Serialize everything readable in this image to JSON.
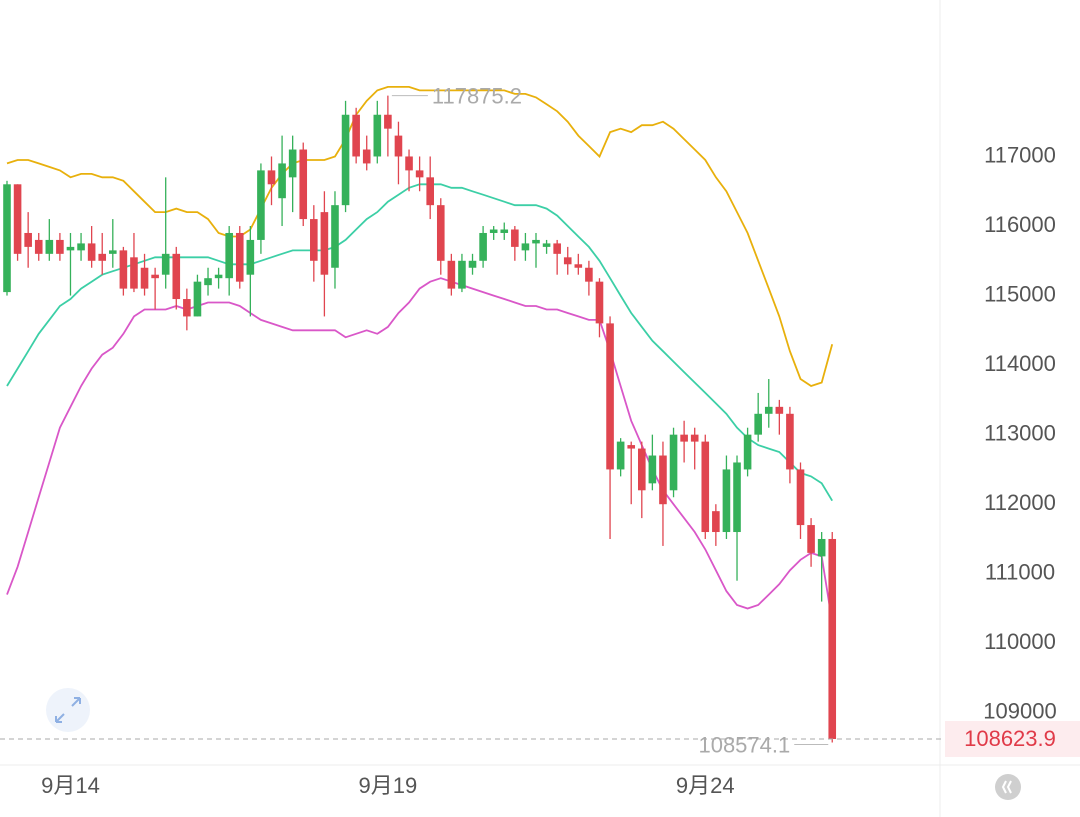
{
  "chart_data": {
    "type": "candlestick",
    "categories": [
      null,
      null,
      null,
      null,
      null,
      null,
      "9月14",
      null,
      null,
      null,
      null,
      null,
      null,
      null,
      null,
      null,
      null,
      null,
      null,
      null,
      null,
      null,
      null,
      null,
      null,
      null,
      null,
      null,
      null,
      null,
      null,
      null,
      null,
      null,
      null,
      null,
      "9月19",
      null,
      null,
      null,
      null,
      null,
      null,
      null,
      null,
      null,
      null,
      null,
      null,
      null,
      null,
      null,
      null,
      null,
      null,
      null,
      null,
      null,
      null,
      null,
      null,
      null,
      null,
      null,
      null,
      null,
      "9月24",
      null,
      null,
      null,
      null,
      null,
      null,
      null,
      null,
      null,
      null,
      null,
      null
    ],
    "open": [
      115050,
      116600,
      115900,
      115800,
      115600,
      115800,
      115650,
      115650,
      115750,
      115600,
      115600,
      115650,
      115550,
      115400,
      115300,
      115300,
      115600,
      114950,
      114700,
      115150,
      115250,
      115250,
      115900,
      115300,
      115800,
      116800,
      116400,
      116700,
      117100,
      116100,
      116200,
      115400,
      116300,
      117600,
      117100,
      117000,
      117600,
      117300,
      117000,
      116800,
      116700,
      116300,
      115500,
      115100,
      115400,
      115500,
      115900,
      115900,
      115950,
      115650,
      115750,
      115700,
      115750,
      115550,
      115450,
      115400,
      115200,
      114600,
      112500,
      112850,
      112800,
      112300,
      112700,
      112200,
      113000,
      113000,
      112900,
      111900,
      111600,
      111600,
      112500,
      113000,
      113300,
      113400,
      113300,
      112500,
      111700,
      111250,
      111500
    ],
    "high": [
      116650,
      116600,
      116200,
      115900,
      116100,
      115900,
      115900,
      115900,
      116000,
      115900,
      116100,
      115700,
      115900,
      115600,
      115400,
      116700,
      115700,
      115100,
      115300,
      115400,
      115400,
      116000,
      116000,
      116000,
      116900,
      117000,
      117300,
      117300,
      117200,
      116300,
      116500,
      116500,
      117800,
      117700,
      117300,
      117800,
      117875.2,
      117500,
      117100,
      117000,
      117000,
      116400,
      115600,
      115600,
      115600,
      116000,
      116000,
      116050,
      116000,
      115900,
      115900,
      115800,
      115800,
      115700,
      115600,
      115500,
      115250,
      114700,
      112950,
      112900,
      112900,
      113000,
      112900,
      113100,
      113200,
      113100,
      113000,
      112000,
      112700,
      112700,
      113100,
      113600,
      113800,
      113500,
      113400,
      112600,
      111800,
      111600,
      111600
    ],
    "low": [
      115000,
      115500,
      115400,
      115500,
      115500,
      115500,
      115000,
      115500,
      115400,
      115300,
      115400,
      115000,
      115050,
      115000,
      114800,
      115100,
      114800,
      114500,
      114700,
      115000,
      115100,
      115000,
      115100,
      114700,
      115600,
      116300,
      116000,
      116200,
      116000,
      115200,
      114700,
      115100,
      116200,
      116900,
      116800,
      116900,
      117000,
      116600,
      116500,
      116500,
      116100,
      115300,
      115000,
      115050,
      115300,
      115400,
      115800,
      115800,
      115500,
      115500,
      115400,
      115600,
      115300,
      115300,
      115300,
      115000,
      114400,
      111500,
      112400,
      112000,
      111800,
      112200,
      111400,
      112100,
      112600,
      112500,
      111500,
      111400,
      111500,
      110900,
      112400,
      112900,
      113100,
      113000,
      112300,
      111500,
      111100,
      110600,
      108574.1
    ],
    "close": [
      116600,
      115600,
      115700,
      115600,
      115800,
      115600,
      115700,
      115750,
      115500,
      115500,
      115650,
      115100,
      115100,
      115100,
      115250,
      115600,
      114950,
      114700,
      115200,
      115250,
      115300,
      115900,
      115200,
      115800,
      116800,
      116600,
      116900,
      117100,
      116100,
      115500,
      115300,
      116300,
      117600,
      117000,
      116900,
      117600,
      117400,
      117000,
      116800,
      116700,
      116300,
      115500,
      115100,
      115500,
      115500,
      115900,
      115950,
      115950,
      115700,
      115750,
      115800,
      115750,
      115600,
      115450,
      115400,
      115200,
      114600,
      112500,
      112900,
      112800,
      112200,
      112700,
      112000,
      113000,
      112900,
      112900,
      111600,
      111600,
      112500,
      112600,
      113000,
      113300,
      113400,
      113300,
      112500,
      111700,
      111300,
      111500,
      108623.9
    ],
    "up_color": "#35b15a",
    "down_color": "#e0454f",
    "bands": [
      {
        "color": "#e8b00c",
        "values": [
          116900,
          116950,
          116950,
          116900,
          116850,
          116800,
          116700,
          116750,
          116750,
          116700,
          116700,
          116650,
          116500,
          116350,
          116200,
          116200,
          116250,
          116200,
          116200,
          116100,
          115900,
          115850,
          115850,
          115950,
          116250,
          116550,
          116750,
          116900,
          116950,
          116950,
          116950,
          117000,
          117250,
          117600,
          117800,
          117950,
          118000,
          118000,
          118000,
          117950,
          117950,
          117950,
          117950,
          117950,
          117950,
          117950,
          117950,
          117950,
          117900,
          117900,
          117850,
          117750,
          117650,
          117500,
          117300,
          117150,
          117000,
          117350,
          117400,
          117350,
          117450,
          117450,
          117500,
          117400,
          117250,
          117100,
          116950,
          116700,
          116500,
          116200,
          115900,
          115500,
          115100,
          114700,
          114200,
          113800,
          113700,
          113750,
          114300
        ]
      },
      {
        "color": "#3ccfa6",
        "values": [
          113700,
          113950,
          114200,
          114450,
          114650,
          114850,
          114950,
          115100,
          115200,
          115300,
          115350,
          115400,
          115450,
          115500,
          115550,
          115550,
          115550,
          115550,
          115550,
          115550,
          115500,
          115450,
          115450,
          115450,
          115500,
          115550,
          115600,
          115650,
          115650,
          115650,
          115650,
          115700,
          115800,
          115950,
          116100,
          116200,
          116350,
          116450,
          116550,
          116600,
          116600,
          116600,
          116550,
          116550,
          116500,
          116450,
          116400,
          116350,
          116300,
          116300,
          116300,
          116250,
          116150,
          116000,
          115850,
          115700,
          115500,
          115250,
          115000,
          114750,
          114550,
          114350,
          114200,
          114050,
          113900,
          113750,
          113600,
          113450,
          113300,
          113100,
          112950,
          112850,
          112800,
          112750,
          112600,
          112450,
          112400,
          112300,
          112050
        ]
      },
      {
        "color": "#d957c8",
        "values": [
          110700,
          111100,
          111600,
          112100,
          112600,
          113100,
          113400,
          113700,
          113950,
          114150,
          114250,
          114450,
          114700,
          114800,
          114800,
          114800,
          114850,
          114800,
          114850,
          114900,
          114900,
          114900,
          114850,
          114750,
          114650,
          114600,
          114550,
          114500,
          114500,
          114500,
          114500,
          114500,
          114400,
          114450,
          114500,
          114450,
          114550,
          114750,
          114900,
          115100,
          115200,
          115250,
          115200,
          115150,
          115100,
          115050,
          115000,
          114950,
          114900,
          114850,
          114850,
          114800,
          114800,
          114750,
          114700,
          114650,
          114650,
          114200,
          113700,
          113200,
          112850,
          112500,
          112200,
          112000,
          111800,
          111600,
          111350,
          111050,
          110750,
          110550,
          110500,
          110550,
          110700,
          110850,
          111050,
          111200,
          111300,
          111250,
          110300
        ]
      }
    ],
    "ylim": [
      108250,
      119250
    ],
    "yticks": [
      109000,
      110000,
      111000,
      112000,
      113000,
      114000,
      115000,
      116000,
      117000
    ]
  }
}
